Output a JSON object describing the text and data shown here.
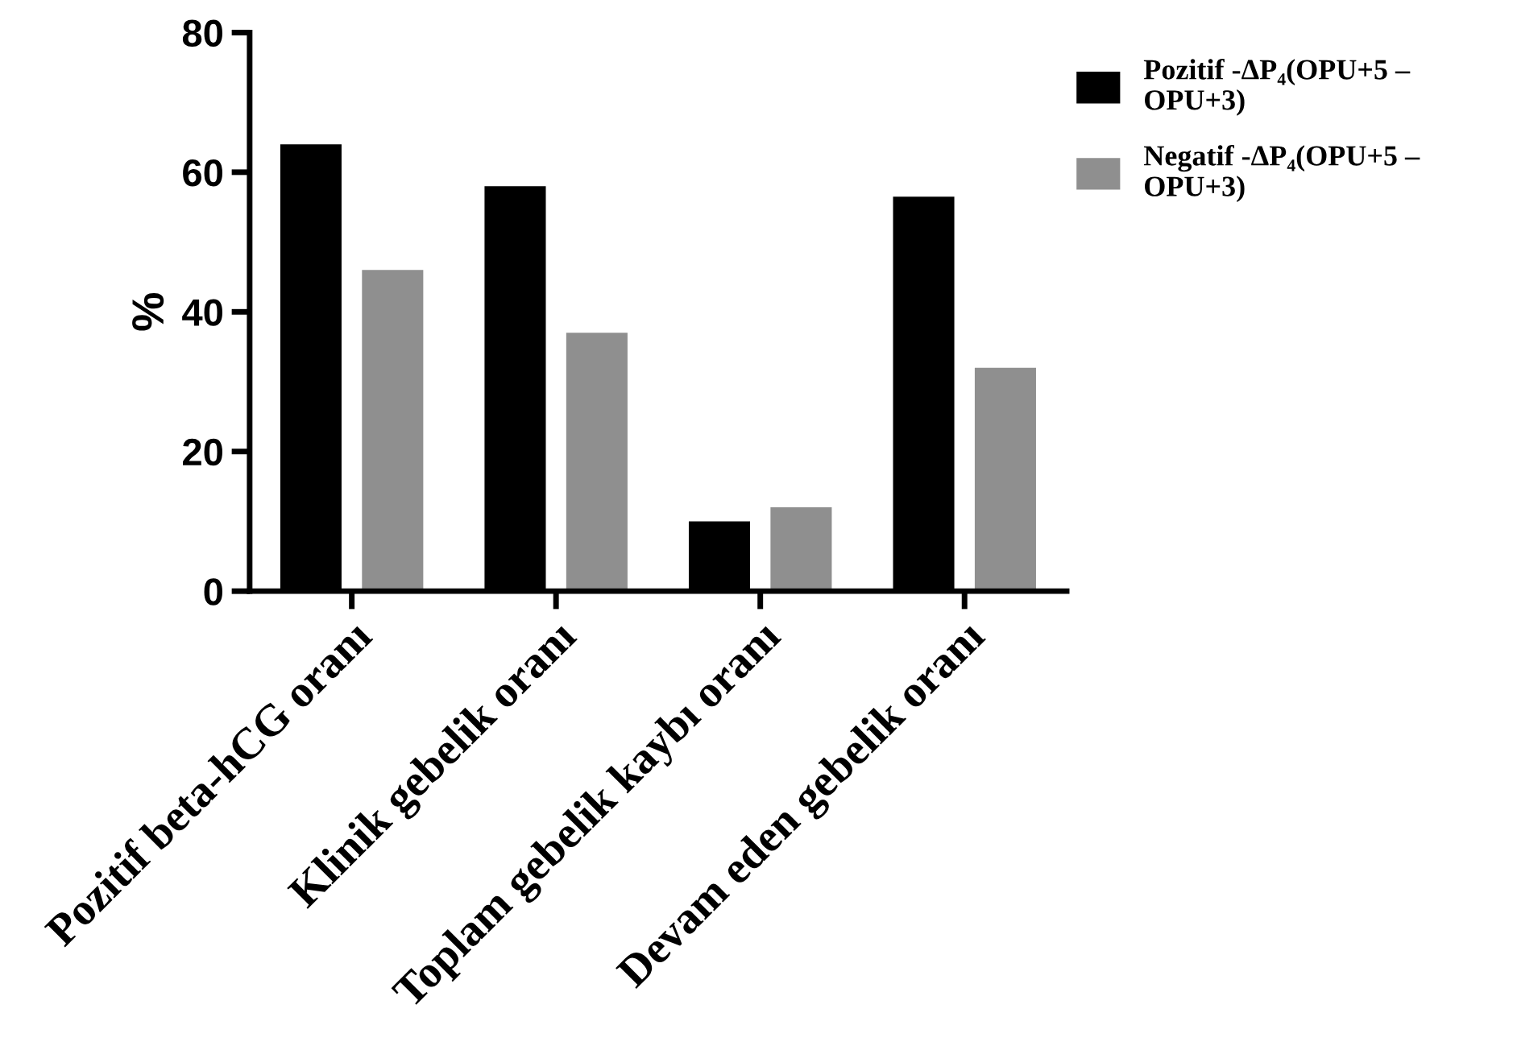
{
  "chart_data": {
    "type": "bar",
    "ylabel": "%",
    "categories": [
      "Pozitif beta-hCG oranı",
      "Klinik gebelik oranı",
      "Toplam gebelik kaybı oranı",
      "Devam eden gebelik oranı"
    ],
    "series": [
      {
        "name": "Pozitif -ΔP₄(OPU+5 – OPU+3)",
        "color": "#000000",
        "values": [
          64,
          58,
          10,
          56.5
        ]
      },
      {
        "name": "Negatif -ΔP₄(OPU+5 – OPU+3)",
        "color": "#8f8f8f",
        "values": [
          46,
          37,
          12,
          32
        ]
      }
    ],
    "ylim": [
      0,
      80
    ],
    "yticks": [
      0,
      20,
      40,
      60,
      80
    ],
    "grid": false,
    "legend": "top right"
  }
}
